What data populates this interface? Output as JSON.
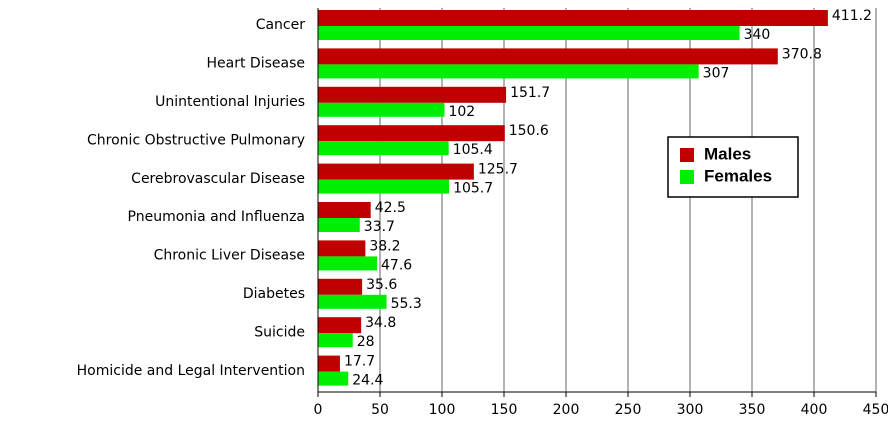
{
  "chart_data": {
    "type": "bar",
    "orientation": "horizontal",
    "categories": [
      "Cancer",
      "Heart Disease",
      "Unintentional Injuries",
      "Chronic Obstructive Pulmonary",
      "Cerebrovascular Disease",
      "Pneumonia and Influenza",
      "Chronic Liver Disease",
      "Diabetes",
      "Suicide",
      "Homicide and Legal Intervention"
    ],
    "series": [
      {
        "name": "Males",
        "color": "#c00000",
        "values": [
          411.2,
          370.8,
          151.7,
          150.6,
          125.7,
          42.5,
          38.2,
          35.6,
          34.8,
          17.7
        ]
      },
      {
        "name": "Females",
        "color": "#00ee00",
        "values": [
          340,
          307,
          102,
          105.4,
          105.7,
          33.7,
          47.6,
          55.3,
          28,
          24.4
        ]
      }
    ],
    "xlim": [
      0,
      450
    ],
    "xticks": [
      0,
      50,
      100,
      150,
      200,
      250,
      300,
      350,
      400,
      450
    ],
    "grid": true
  }
}
